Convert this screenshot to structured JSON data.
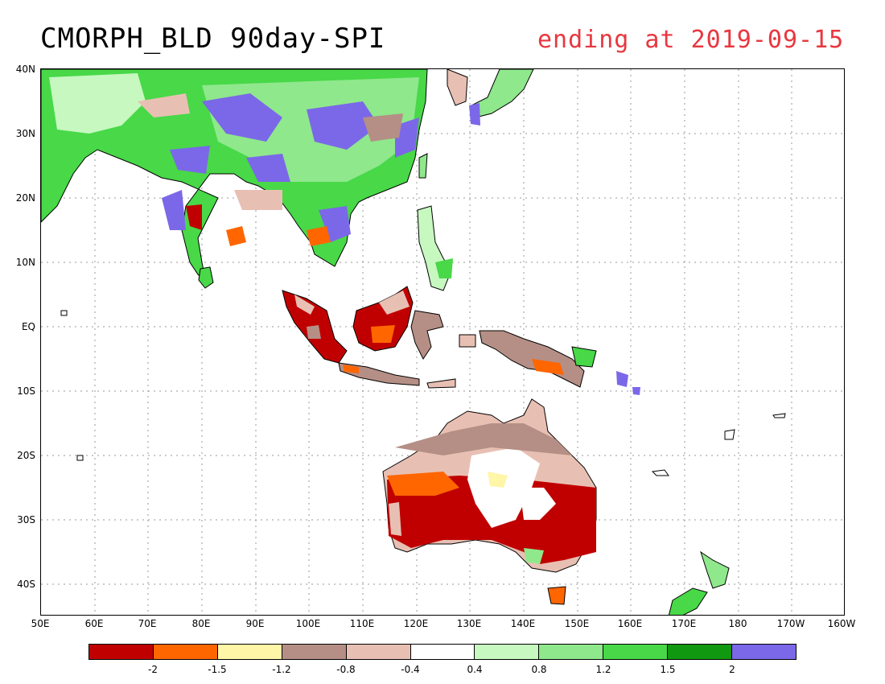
{
  "header": {
    "title": "CMORPH_BLD 90day-SPI",
    "subtitle": "ending at 2019-09-15"
  },
  "axes": {
    "lat_labels": [
      "40N",
      "30N",
      "20N",
      "10N",
      "EQ",
      "10S",
      "20S",
      "30S",
      "40S"
    ],
    "lon_labels": [
      "50E",
      "60E",
      "70E",
      "80E",
      "90E",
      "100E",
      "110E",
      "120E",
      "130E",
      "140E",
      "150E",
      "160E",
      "170E",
      "180",
      "170W",
      "160W"
    ]
  },
  "legend": {
    "colors": [
      "#c00000",
      "#ff6600",
      "#fff6a8",
      "#b58f85",
      "#e8c0b3",
      "#ffffff",
      "#c6f8c0",
      "#8fe88c",
      "#48d848",
      "#109810",
      "#7b68e8"
    ],
    "tick_labels": [
      "-2",
      "-1.5",
      "-1.2",
      "-0.8",
      "-0.4",
      "0.4",
      "0.8",
      "1.2",
      "1.5",
      "2"
    ]
  },
  "map_colors": {
    "very_dry": "#c00000",
    "dry": "#ff6600",
    "slightly_dry": "#b58f85",
    "near_normal_dry": "#e8c0b3",
    "wet_light": "#c6f8c0",
    "wet_mid": "#48d848",
    "wet_strong": "#109810",
    "very_wet": "#7b68e8"
  }
}
